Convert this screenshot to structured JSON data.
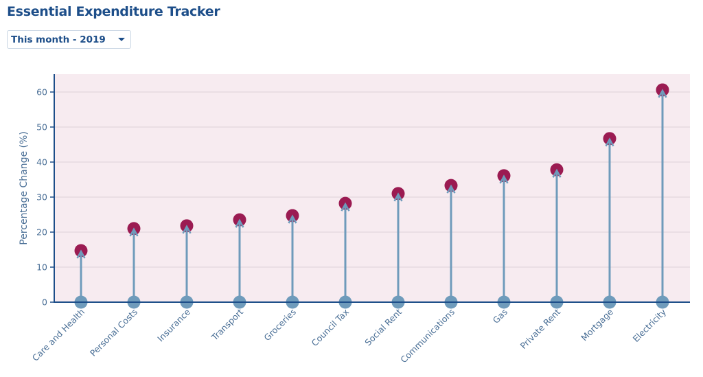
{
  "header": {
    "title": "Essential Expenditure Tracker"
  },
  "filter": {
    "selected": "This month - 2019",
    "icon": "chevron-down-icon"
  },
  "colors": {
    "title": "#1d4e89",
    "plot_background": "#f7ebf0",
    "gridline": "#e6d9df",
    "axis": "#1d4e89",
    "stem": "#6f9bbb",
    "base_marker": "#6f9bbb",
    "top_marker": "#9b1b52",
    "text": "#4a6f96"
  },
  "chart_data": {
    "type": "lollipop",
    "title": "Essential Expenditure Tracker",
    "xlabel": "",
    "ylabel": "Percentage Change (%)",
    "ylim": [
      0,
      65
    ],
    "yticks": [
      0,
      10,
      20,
      30,
      40,
      50,
      60
    ],
    "grid": true,
    "legend": null,
    "categories": [
      "Care and Health",
      "Personal Costs",
      "Insurance",
      "Transport",
      "Groceries",
      "Council Tax",
      "Social Rent",
      "Communications",
      "Gas",
      "Private Rent",
      "Mortgage",
      "Electricity"
    ],
    "series": [
      {
        "name": "Start",
        "values": [
          0,
          0,
          0,
          0,
          0,
          0,
          0,
          0,
          0,
          0,
          0,
          0
        ]
      },
      {
        "name": "Percentage Change",
        "values": [
          14.7,
          21.0,
          21.8,
          23.5,
          24.7,
          28.2,
          31.0,
          33.3,
          36.1,
          37.8,
          46.7,
          60.6
        ]
      }
    ]
  }
}
